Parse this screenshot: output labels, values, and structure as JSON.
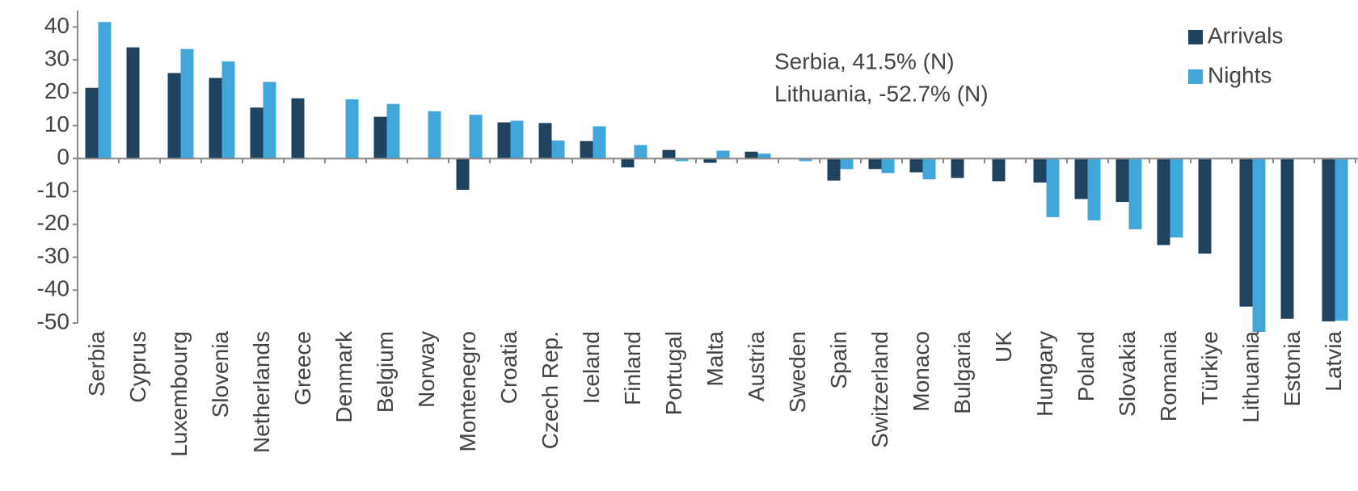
{
  "chart_data": {
    "type": "bar",
    "annotations": [
      "Serbia, 41.5% (N)",
      "Lithuania, -52.7% (N)"
    ],
    "categories": [
      "Serbia",
      "Cyprus",
      "Luxembourg",
      "Slovenia",
      "Netherlands",
      "Greece",
      "Denmark",
      "Belgium",
      "Norway",
      "Montenegro",
      "Croatia",
      "Czech Rep.",
      "Iceland",
      "Finland",
      "Portugal",
      "Malta",
      "Austria",
      "Sweden",
      "Spain",
      "Switzerland",
      "Monaco",
      "Bulgaria",
      "UK",
      "Hungary",
      "Poland",
      "Slovakia",
      "Romania",
      "Türkiye",
      "Lithuania",
      "Estonia",
      "Latvia"
    ],
    "series": [
      {
        "name": "Arrivals",
        "color": "#1f425e",
        "values": [
          21.5,
          33.8,
          26,
          24.5,
          15.5,
          18.3,
          null,
          12.7,
          null,
          -9.5,
          11,
          10.8,
          5.3,
          -2.7,
          2.6,
          -1.3,
          2.1,
          null,
          -6.7,
          -3.2,
          -4.2,
          -5.9,
          -6.9,
          -7.3,
          -12.3,
          -13.2,
          -26.3,
          -28.9,
          -45,
          -48.7,
          -49.5
        ]
      },
      {
        "name": "Nights",
        "color": "#41a6d9",
        "values": [
          41.5,
          null,
          33.3,
          29.5,
          23.3,
          null,
          18,
          16.6,
          14.4,
          13.3,
          11.5,
          5.5,
          9.8,
          4.1,
          -0.8,
          2.4,
          1.5,
          -0.8,
          -3.2,
          -4.4,
          -6.3,
          null,
          null,
          -17.8,
          -18.8,
          -21.5,
          -24,
          null,
          -52.7,
          null,
          -49.3
        ]
      }
    ],
    "ylim": [
      -50,
      45
    ],
    "yticks": [
      -50,
      -40,
      -30,
      -20,
      -10,
      0,
      10,
      20,
      30,
      40
    ],
    "legend": "top-right"
  }
}
